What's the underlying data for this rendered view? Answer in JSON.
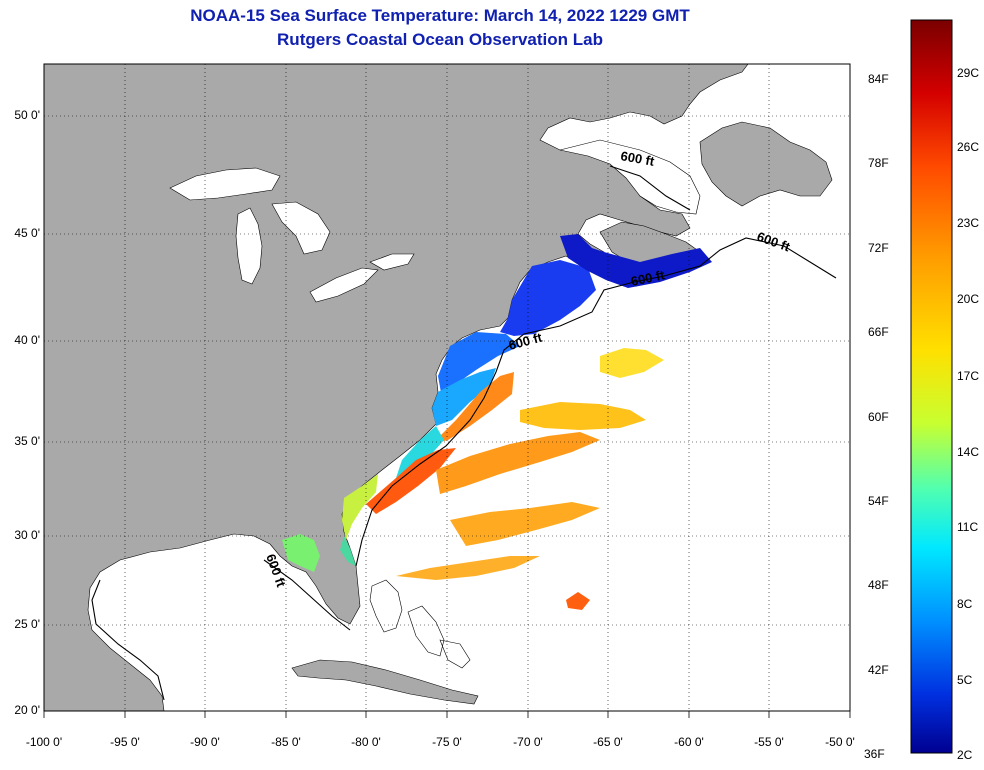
{
  "title": {
    "line1": "NOAA-15 Sea Surface Temperature:  March 14, 2022 1229 GMT",
    "line2": "Rutgers Coastal Ocean Observation Lab"
  },
  "map": {
    "lat_labels": [
      "50 0'",
      "45 0'",
      "40 0'",
      "35 0'",
      "30 0'",
      "25 0'",
      "20 0'"
    ],
    "lon_labels": [
      "-100 0'",
      "-95 0'",
      "-90 0'",
      "-85 0'",
      "-80 0'",
      "-75 0'",
      "-70 0'",
      "-65 0'",
      "-60 0'",
      "-55 0'",
      "-50 0'"
    ],
    "isobath_label": "600 ft",
    "land_color": "#a9a9a9",
    "ocean_color": "#ffffff"
  },
  "colorbar": {
    "fahrenheit": [
      "84F",
      "78F",
      "72F",
      "66F",
      "60F",
      "54F",
      "48F",
      "42F",
      "36F"
    ],
    "celsius": [
      "29C",
      "26C",
      "23C",
      "20C",
      "17C",
      "14C",
      "11C",
      "8C",
      "5C",
      "2C"
    ],
    "colors_top_to_bottom": [
      "#7a0000",
      "#d40000",
      "#ff4a00",
      "#ff9a00",
      "#ffe000",
      "#c8ff30",
      "#50ffb0",
      "#00e8ff",
      "#0090ff",
      "#0030e0",
      "#000090"
    ]
  }
}
